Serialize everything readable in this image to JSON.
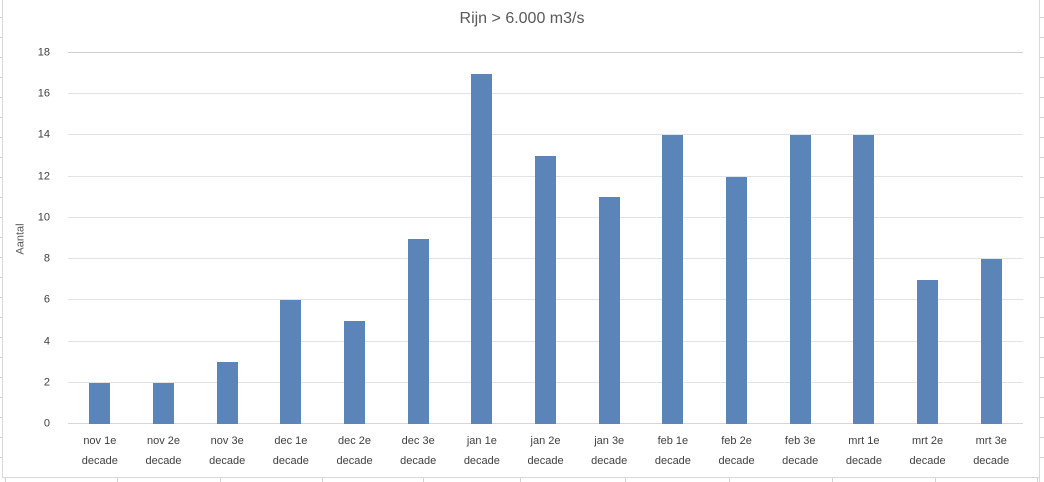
{
  "chart_data": {
    "type": "bar",
    "title": "Rijn > 6.000 m3/s",
    "xlabel": "",
    "ylabel": "Aantal",
    "categories": [
      "nov 1e decade",
      "nov 2e decade",
      "nov 3e decade",
      "dec 1e decade",
      "dec 2e decade",
      "dec 3e decade",
      "jan 1e decade",
      "jan 2e decade",
      "jan 3e decade",
      "feb 1e decade",
      "feb 2e decade",
      "feb 3e decade",
      "mrt 1e decade",
      "mrt 2e decade",
      "mrt 3e decade"
    ],
    "values": [
      2,
      2,
      3,
      6,
      5,
      9,
      17,
      13,
      11,
      14,
      12,
      14,
      14,
      7,
      8
    ],
    "ylim": [
      0,
      18
    ],
    "ytick_step": 2,
    "ytick_labels": [
      "0",
      "2",
      "4",
      "6",
      "8",
      "10",
      "12",
      "14",
      "16",
      "18"
    ],
    "grid": true,
    "legend": false,
    "bar_color": "#5b84b8",
    "gridline_color": "#e3e3e3",
    "title_color": "#595959",
    "tick_label_color": "#404040"
  }
}
